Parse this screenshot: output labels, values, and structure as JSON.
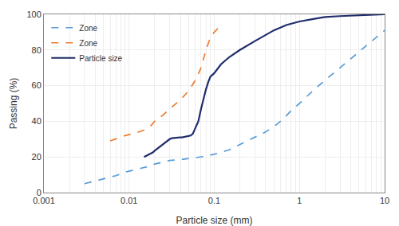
{
  "chart_data": {
    "type": "line",
    "title": "",
    "xlabel": "Particle size (mm)",
    "ylabel": "Passing (%)",
    "log": "x",
    "xlim": [
      0.001,
      10
    ],
    "xticks": [
      0.001,
      0.01,
      0.1,
      1,
      10
    ],
    "ylim": [
      0,
      100
    ],
    "yticks": [
      0,
      20,
      40,
      60,
      80,
      100
    ],
    "grid": true,
    "legend": "upper left",
    "series": [
      {
        "name": "Zone",
        "color": "#5B9BD5",
        "line_style": "dashed",
        "x": [
          0.003,
          0.004,
          0.005,
          0.006,
          0.007,
          0.008,
          0.009,
          0.01,
          0.012,
          0.015,
          0.018,
          0.02,
          0.025,
          0.03,
          0.04,
          0.05,
          0.06,
          0.07,
          0.08,
          0.09,
          0.1,
          0.15,
          0.2,
          0.3,
          0.4,
          0.5,
          0.6,
          0.7,
          0.8,
          1.0,
          1.5,
          2.0,
          3.0,
          4.0,
          5.0,
          6.0,
          7.0,
          8.0,
          9.0,
          10.0
        ],
        "values": [
          5,
          6.5,
          7.5,
          8.5,
          9.5,
          10.5,
          11.5,
          12,
          13,
          14,
          15,
          16,
          17,
          18,
          18.5,
          19,
          19.5,
          20,
          20.5,
          21,
          21.5,
          24,
          27,
          31,
          34,
          37,
          40,
          43,
          46,
          50,
          58,
          63,
          70,
          75,
          79,
          82,
          85,
          87,
          89,
          91
        ]
      },
      {
        "name": "Zone",
        "color": "#ED7D31",
        "line_style": "dashed",
        "x": [
          0.006,
          0.007,
          0.008,
          0.009,
          0.01,
          0.012,
          0.015,
          0.018,
          0.02,
          0.025,
          0.03,
          0.04,
          0.05,
          0.06,
          0.07,
          0.075,
          0.08,
          0.09,
          0.1,
          0.11,
          0.12
        ],
        "values": [
          29,
          30,
          31,
          32,
          32.5,
          33.5,
          35,
          37.5,
          40,
          43.5,
          47,
          52,
          57,
          63,
          70,
          75,
          80,
          87,
          90,
          92,
          93
        ]
      },
      {
        "name": "Particle size",
        "color": "#1F2D6B",
        "line_style": "solid",
        "x": [
          0.015,
          0.017,
          0.019,
          0.02,
          0.022,
          0.025,
          0.028,
          0.03,
          0.032,
          0.035,
          0.038,
          0.04,
          0.042,
          0.045,
          0.048,
          0.05,
          0.053,
          0.056,
          0.06,
          0.065,
          0.07,
          0.075,
          0.08,
          0.085,
          0.09,
          0.1,
          0.12,
          0.15,
          0.2,
          0.3,
          0.5,
          0.7,
          1.0,
          1.5,
          2.0,
          3.0,
          5.0,
          7.0,
          10.0
        ],
        "values": [
          20,
          21.5,
          22.5,
          23.5,
          25,
          27,
          29,
          30,
          30.5,
          30.8,
          31,
          31,
          31,
          31.2,
          31.5,
          31.5,
          32,
          33,
          36,
          40,
          47,
          53,
          58,
          62,
          65,
          67,
          72,
          76,
          80,
          85,
          91,
          94,
          96,
          97.5,
          98.5,
          99,
          99.5,
          99.8,
          100
        ]
      }
    ]
  }
}
